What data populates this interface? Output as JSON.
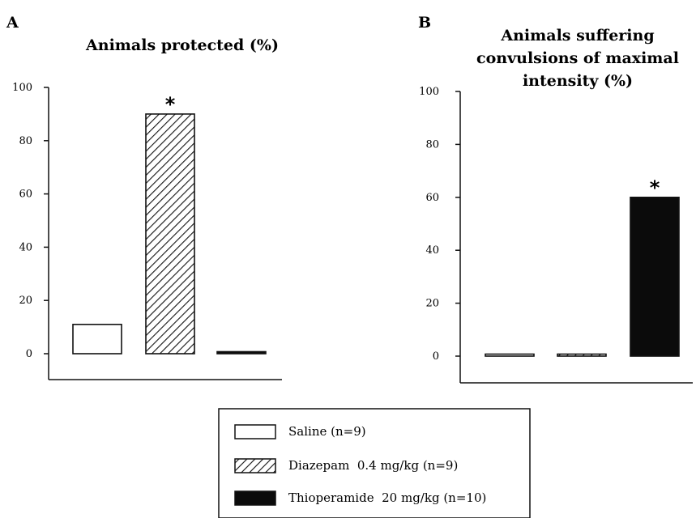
{
  "chart_data": [
    {
      "type": "bar",
      "panel": "A",
      "title": "Animals protected (%)",
      "categories": [
        "Saline (n=9)",
        "Diazepam 0.4 mg/kg (n=9)",
        "Thioperamide 20 mg/kg (n=10)"
      ],
      "values": [
        11,
        90,
        0
      ],
      "significance": [
        "",
        "*",
        ""
      ],
      "yticks": [
        0,
        20,
        40,
        60,
        80,
        100
      ],
      "ylim": [
        -10,
        100
      ],
      "xlabel": "",
      "ylabel": ""
    },
    {
      "type": "bar",
      "panel": "B",
      "title": "Animals suffering convulsions of maximal intensity (%)",
      "title_lines": [
        "Animals suffering",
        "convulsions of maximal",
        "intensity (%)"
      ],
      "categories": [
        "Saline (n=9)",
        "Diazepam 0.4 mg/kg (n=9)",
        "Thioperamide 20 mg/kg (n=10)"
      ],
      "values": [
        0,
        0,
        60
      ],
      "significance": [
        "",
        "",
        "*"
      ],
      "yticks": [
        0,
        20,
        40,
        60,
        80,
        100
      ],
      "ylim": [
        -10,
        100
      ],
      "xlabel": "",
      "ylabel": ""
    }
  ],
  "legend": {
    "items": [
      {
        "label": "Saline (n=9)",
        "fill": "white"
      },
      {
        "label": "Diazepam  0.4 mg/kg (n=9)",
        "fill": "hatched"
      },
      {
        "label": "Thioperamide  20 mg/kg (n=10)",
        "fill": "black"
      }
    ]
  },
  "colors": {
    "bar_outline": "#111111",
    "solid": "#0b0b0b",
    "background": "#ffffff"
  }
}
